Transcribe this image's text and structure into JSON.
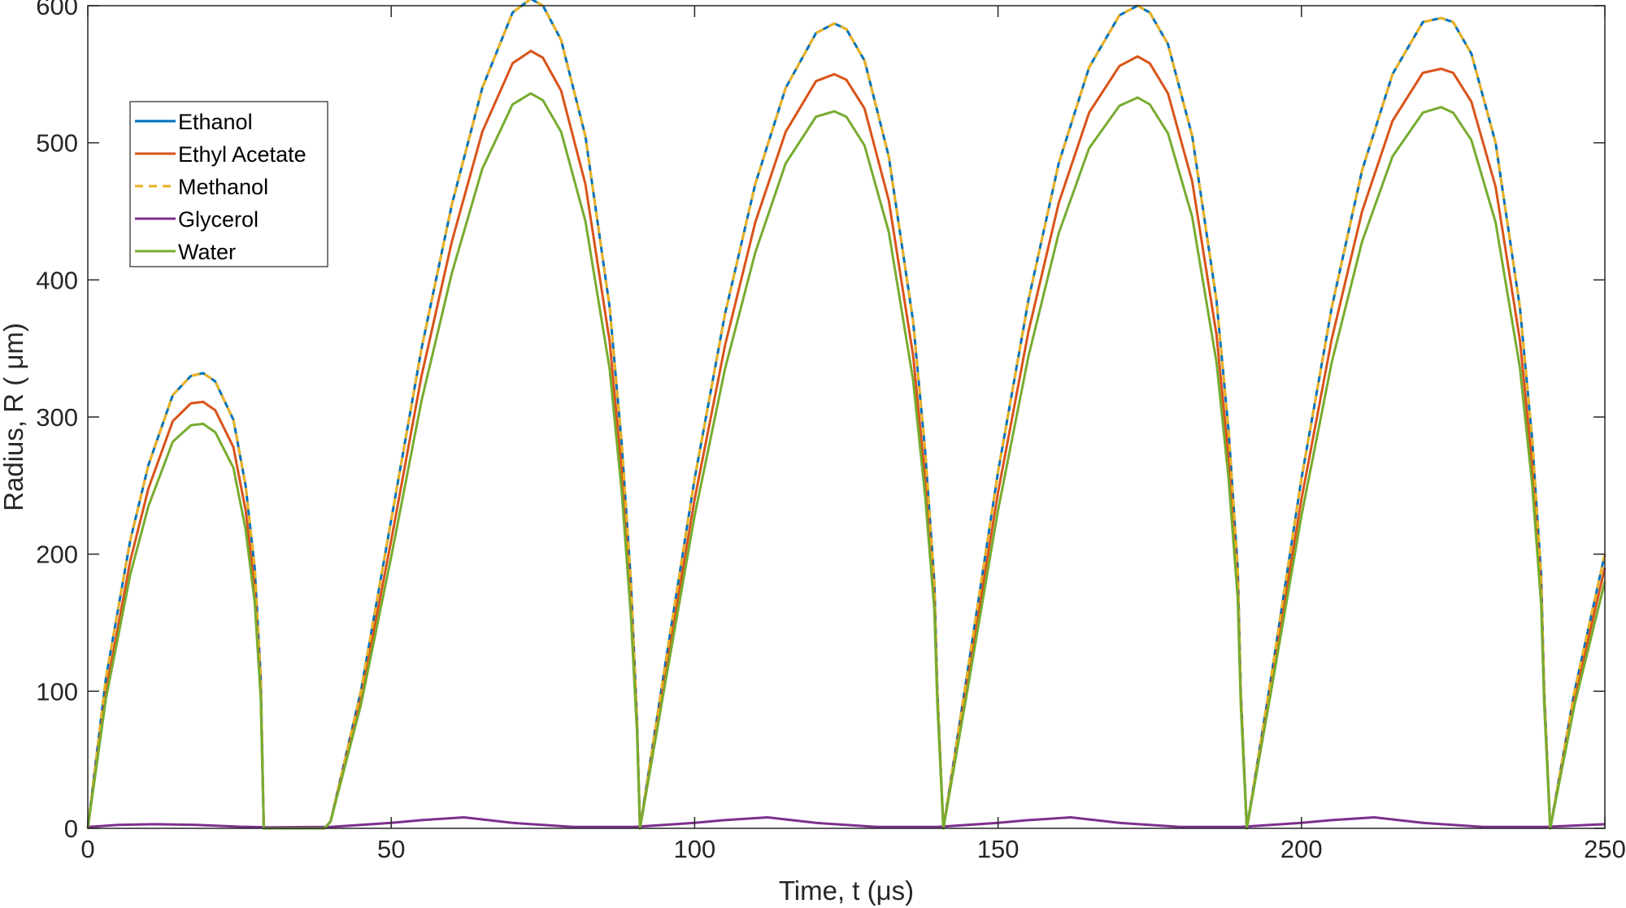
{
  "chart_data": {
    "type": "line",
    "title": "",
    "xlabel": "Time, t (μs)",
    "ylabel": "Radius, R ( μm)",
    "xlim": [
      0,
      250
    ],
    "ylim": [
      0,
      600
    ],
    "x_ticks": [
      "0",
      "50",
      "100",
      "150",
      "200",
      "250"
    ],
    "y_ticks": [
      "0",
      "100",
      "200",
      "300",
      "400",
      "500",
      "600"
    ],
    "grid": false,
    "legend_position": "top-left",
    "series": [
      {
        "name": "Ethanol",
        "color": "#0072BD",
        "style": "solid",
        "x": [
          0,
          3,
          7,
          10,
          14,
          17,
          19,
          21,
          24,
          26,
          27.5,
          28.5,
          29,
          35,
          39,
          40,
          45,
          50,
          55,
          60,
          65,
          70,
          73,
          75,
          78,
          82,
          86,
          88,
          89.5,
          90.5,
          91,
          95,
          100,
          105,
          110,
          115,
          120,
          123,
          125,
          128,
          132,
          136,
          138,
          139.5,
          140,
          141,
          145,
          150,
          155,
          160,
          165,
          170,
          173,
          175,
          178,
          182,
          186,
          188,
          189.5,
          190,
          191,
          195,
          200,
          205,
          210,
          215,
          220,
          223,
          225,
          228,
          232,
          236,
          238,
          239.5,
          240,
          241,
          245,
          250
        ],
        "y": [
          0,
          110,
          210,
          265,
          316,
          330,
          332,
          326,
          298,
          250,
          190,
          110,
          0,
          0,
          0,
          5,
          100,
          225,
          350,
          455,
          540,
          595,
          605,
          600,
          575,
          505,
          380,
          280,
          180,
          80,
          0,
          115,
          255,
          375,
          470,
          540,
          580,
          587,
          583,
          560,
          490,
          370,
          275,
          180,
          100,
          0,
          115,
          260,
          385,
          485,
          555,
          593,
          600,
          595,
          572,
          505,
          385,
          290,
          190,
          100,
          0,
          110,
          255,
          380,
          480,
          550,
          588,
          591,
          588,
          565,
          500,
          380,
          285,
          185,
          100,
          0,
          100,
          200
        ]
      },
      {
        "name": "Ethyl Acetate",
        "color": "#D95319",
        "style": "solid",
        "x": [
          0,
          3,
          7,
          10,
          14,
          17,
          19,
          21,
          24,
          26,
          27.5,
          28.5,
          29,
          35,
          39,
          40,
          45,
          50,
          55,
          60,
          65,
          70,
          73,
          75,
          78,
          82,
          86,
          88,
          89.5,
          90.5,
          91,
          95,
          100,
          105,
          110,
          115,
          120,
          123,
          125,
          128,
          132,
          136,
          138,
          139.5,
          140,
          141,
          145,
          150,
          155,
          160,
          165,
          170,
          173,
          175,
          178,
          182,
          186,
          188,
          189.5,
          190,
          191,
          195,
          200,
          205,
          210,
          215,
          220,
          223,
          225,
          228,
          232,
          236,
          238,
          239.5,
          240,
          241,
          245,
          250
        ],
        "y": [
          0,
          100,
          195,
          248,
          297,
          310,
          311,
          305,
          278,
          232,
          175,
          100,
          0,
          0,
          0,
          5,
          95,
          210,
          330,
          428,
          508,
          558,
          567,
          562,
          538,
          470,
          355,
          260,
          165,
          75,
          0,
          108,
          240,
          352,
          442,
          508,
          545,
          550,
          546,
          525,
          458,
          345,
          255,
          168,
          95,
          0,
          108,
          245,
          362,
          456,
          522,
          556,
          563,
          558,
          536,
          472,
          360,
          270,
          178,
          95,
          0,
          104,
          240,
          357,
          450,
          516,
          551,
          554,
          551,
          530,
          468,
          356,
          266,
          173,
          95,
          0,
          95,
          190
        ]
      },
      {
        "name": "Methanol",
        "color": "#EDB120",
        "style": "dashed",
        "x": [
          0,
          3,
          7,
          10,
          14,
          17,
          19,
          21,
          24,
          26,
          27.5,
          28.5,
          29,
          35,
          39,
          40,
          45,
          50,
          55,
          60,
          65,
          70,
          73,
          75,
          78,
          82,
          86,
          88,
          89.5,
          90.5,
          91,
          95,
          100,
          105,
          110,
          115,
          120,
          123,
          125,
          128,
          132,
          136,
          138,
          139.5,
          140,
          141,
          145,
          150,
          155,
          160,
          165,
          170,
          173,
          175,
          178,
          182,
          186,
          188,
          189.5,
          190,
          191,
          195,
          200,
          205,
          210,
          215,
          220,
          223,
          225,
          228,
          232,
          236,
          238,
          239.5,
          240,
          241,
          245,
          250
        ],
        "y": [
          0,
          110,
          210,
          265,
          316,
          330,
          332,
          326,
          298,
          250,
          190,
          110,
          0,
          0,
          0,
          5,
          100,
          225,
          350,
          455,
          540,
          595,
          605,
          600,
          575,
          505,
          380,
          280,
          180,
          80,
          0,
          115,
          255,
          375,
          470,
          540,
          580,
          587,
          583,
          560,
          490,
          370,
          275,
          180,
          100,
          0,
          115,
          260,
          385,
          485,
          555,
          593,
          600,
          595,
          572,
          505,
          385,
          290,
          190,
          100,
          0,
          110,
          255,
          380,
          480,
          550,
          588,
          591,
          588,
          565,
          500,
          380,
          285,
          185,
          100,
          0,
          100,
          200
        ]
      },
      {
        "name": "Glycerol",
        "color": "#7E2F8E",
        "style": "solid",
        "x": [
          0,
          5,
          11,
          18,
          25,
          30,
          40,
          50,
          55,
          62,
          70,
          80,
          90,
          100,
          105,
          112,
          120,
          130,
          140,
          150,
          155,
          162,
          170,
          180,
          190,
          200,
          205,
          212,
          220,
          230,
          240,
          250
        ],
        "y": [
          1,
          2.5,
          3,
          2.5,
          1.2,
          0.8,
          1,
          4,
          6,
          8,
          4,
          1,
          1,
          4,
          6,
          8,
          4,
          1,
          1,
          4,
          6,
          8,
          4,
          1,
          1,
          4,
          6,
          8,
          4,
          1,
          1,
          3
        ]
      },
      {
        "name": "Water",
        "color": "#77AC30",
        "style": "solid",
        "x": [
          0,
          3,
          7,
          10,
          14,
          17,
          19,
          21,
          24,
          26,
          27.5,
          28.5,
          29,
          35,
          39,
          40,
          45,
          50,
          55,
          60,
          65,
          70,
          73,
          75,
          78,
          82,
          86,
          88,
          89.5,
          90.5,
          91,
          95,
          100,
          105,
          110,
          115,
          120,
          123,
          125,
          128,
          132,
          136,
          138,
          139.5,
          140,
          141,
          145,
          150,
          155,
          160,
          165,
          170,
          173,
          175,
          178,
          182,
          186,
          188,
          189.5,
          190,
          191,
          195,
          200,
          205,
          210,
          215,
          220,
          223,
          225,
          228,
          232,
          236,
          238,
          239.5,
          240,
          241,
          245,
          250
        ],
        "y": [
          0,
          95,
          185,
          235,
          282,
          294,
          295,
          289,
          263,
          218,
          165,
          95,
          0,
          0,
          0,
          5,
          90,
          198,
          312,
          405,
          481,
          528,
          536,
          531,
          508,
          443,
          335,
          245,
          155,
          70,
          0,
          102,
          228,
          335,
          420,
          485,
          519,
          523,
          519,
          498,
          435,
          327,
          242,
          160,
          90,
          0,
          102,
          232,
          344,
          434,
          496,
          527,
          533,
          528,
          507,
          446,
          340,
          255,
          168,
          90,
          0,
          100,
          228,
          340,
          428,
          490,
          522,
          526,
          522,
          502,
          442,
          336,
          252,
          164,
          90,
          0,
          90,
          180
        ]
      }
    ]
  }
}
